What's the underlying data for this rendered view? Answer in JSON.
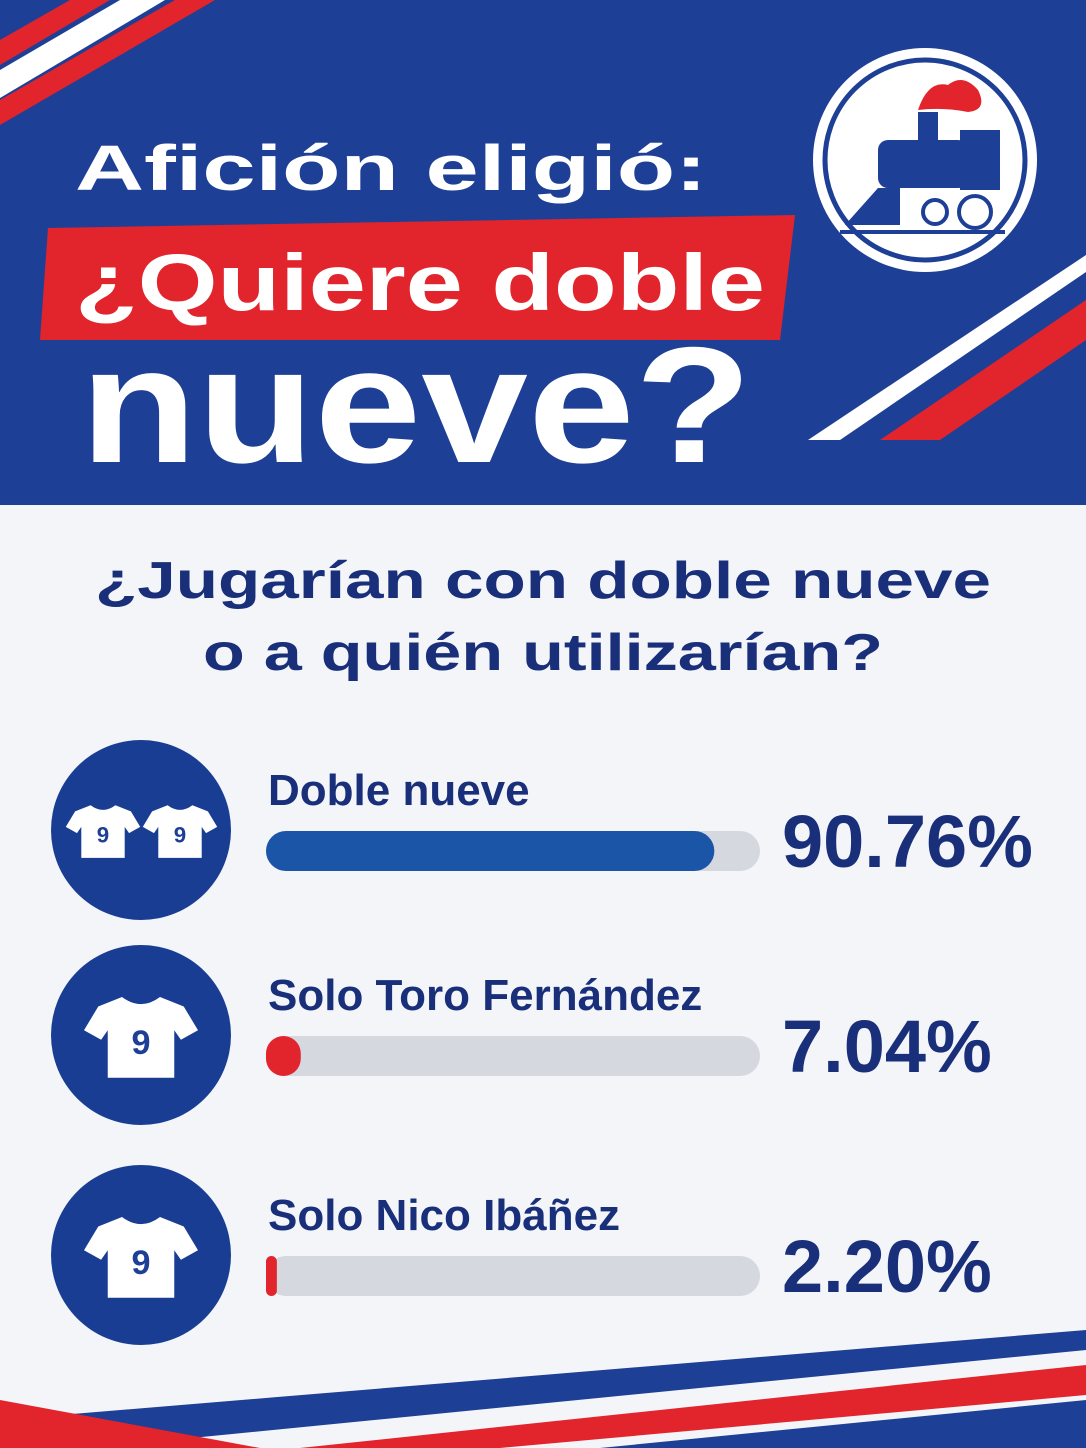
{
  "chart_data": {
    "type": "bar",
    "title": [
      "Afición eligió:",
      "¿Quiere doble",
      "nueve?"
    ],
    "subtitle": [
      "¿Jugarían con doble nueve",
      "o a quién utilizarían?"
    ],
    "categories": [
      "Doble nueve",
      "Solo Toro Fernández",
      "Solo Nico Ibáñez"
    ],
    "values": [
      90.76,
      7.04,
      2.2
    ],
    "value_labels": [
      "90.76%",
      "7.04%",
      "2.20%"
    ],
    "colors": [
      "#1a55a8",
      "#e2242c",
      "#e2242c"
    ],
    "xlim": [
      0,
      100
    ],
    "jersey_number": "9"
  }
}
